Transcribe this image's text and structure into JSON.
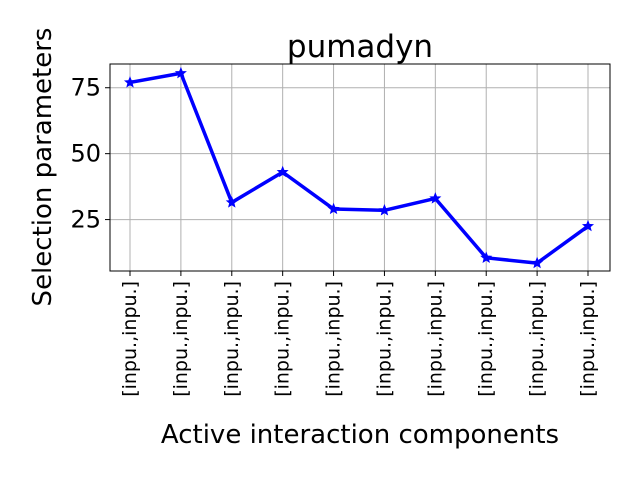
{
  "chart_data": {
    "type": "line",
    "title": "pumadyn",
    "xlabel": "Active interaction components",
    "ylabel": "Selection parameters",
    "categories": [
      "[inpu.,inpu.]",
      "[inpu.,inpu.]",
      "[inpu.,inpu.]",
      "[inpu.,inpu.]",
      "[inpu.,inpu.]",
      "[inpu.,inpu.]",
      "[inpu.,inpu.]",
      "[inpu.,inpu.]",
      "[inpu.,inpu.]",
      "[inpu.,inpu.]"
    ],
    "series": [
      {
        "values": [
          77,
          80.5,
          31.5,
          43,
          29,
          28.5,
          33,
          10.5,
          8.5,
          22.5
        ],
        "color": "#0000ff",
        "marker": "star"
      }
    ],
    "ylim": [
      5.5,
      84
    ],
    "yticks": [
      25,
      50,
      75
    ],
    "grid": true,
    "legend": "none"
  }
}
